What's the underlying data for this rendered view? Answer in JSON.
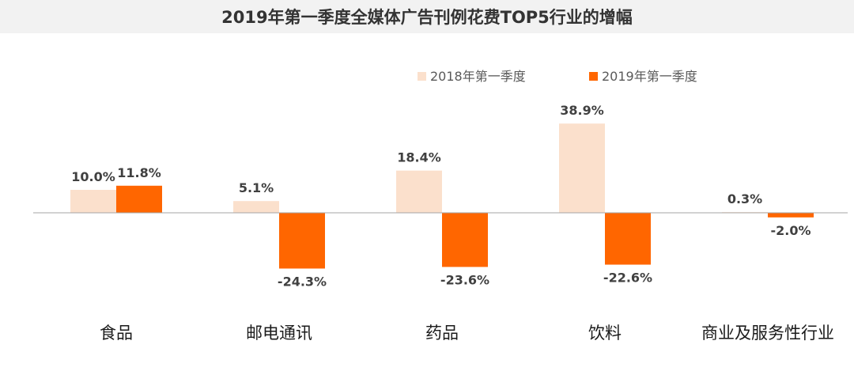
{
  "chart_data": {
    "type": "bar",
    "title": "2019年第一季度全媒体广告刊例花费TOP5行业的增幅",
    "xlabel": "",
    "ylabel": "",
    "categories": [
      "食品",
      "邮电通讯",
      "药品",
      "饮料",
      "商业及服务性行业"
    ],
    "series": [
      {
        "name": "2018年第一季度",
        "values": [
          10.0,
          5.1,
          18.4,
          38.9,
          0.3
        ],
        "labels": [
          "10.0%",
          "5.1%",
          "18.4%",
          "38.9%",
          "0.3%"
        ],
        "color": "#fbe0cc"
      },
      {
        "name": "2019年第一季度",
        "values": [
          11.8,
          -24.3,
          -23.6,
          -22.6,
          -2.0
        ],
        "labels": [
          "11.8%",
          "-24.3%",
          "-23.6%",
          "-22.6%",
          "-2.0%"
        ],
        "color": "#ff6600"
      }
    ],
    "ylim": [
      -26,
      40
    ],
    "grid": false,
    "legend": "top-right"
  }
}
